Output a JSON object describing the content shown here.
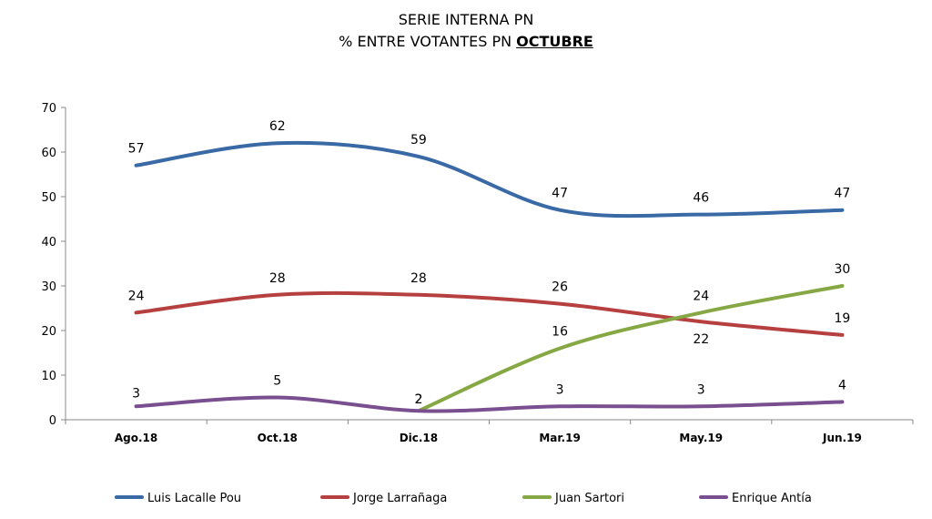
{
  "chart_data": {
    "type": "line",
    "title": "SERIE INTERNA PN",
    "subtitle_prefix": "% ENTRE VOTANTES PN ",
    "subtitle_highlight": "OCTUBRE",
    "categories": [
      "Ago.18",
      "Oct.18",
      "Dic.18",
      "Mar.19",
      "May.19",
      "Jun.19"
    ],
    "ylim": [
      0,
      70
    ],
    "yticks": [
      0,
      10,
      20,
      30,
      40,
      50,
      60,
      70
    ],
    "legend_position": "bottom",
    "series": [
      {
        "name": "Luis Lacalle Pou",
        "color": "#3a6aa6",
        "values": [
          57,
          62,
          59,
          47,
          46,
          47
        ],
        "labels": [
          "57",
          "62",
          "59",
          "47",
          "46",
          "47"
        ]
      },
      {
        "name": "Jorge Larrañaga",
        "color": "#b5403f",
        "values": [
          24,
          28,
          28,
          26,
          22,
          19
        ],
        "labels": [
          "24",
          "28",
          "28",
          "26",
          "22",
          "19"
        ]
      },
      {
        "name": "Juan Sartori",
        "color": "#86a844",
        "values": [
          null,
          null,
          2,
          16,
          24,
          30
        ],
        "labels": [
          null,
          null,
          "2",
          "16",
          "24",
          "30"
        ]
      },
      {
        "name": "Enrique Antía",
        "color": "#7a4f8f",
        "values": [
          3,
          5,
          2,
          3,
          3,
          4
        ],
        "labels": [
          "3",
          "5",
          "2",
          "3",
          "3",
          "4"
        ]
      }
    ]
  }
}
